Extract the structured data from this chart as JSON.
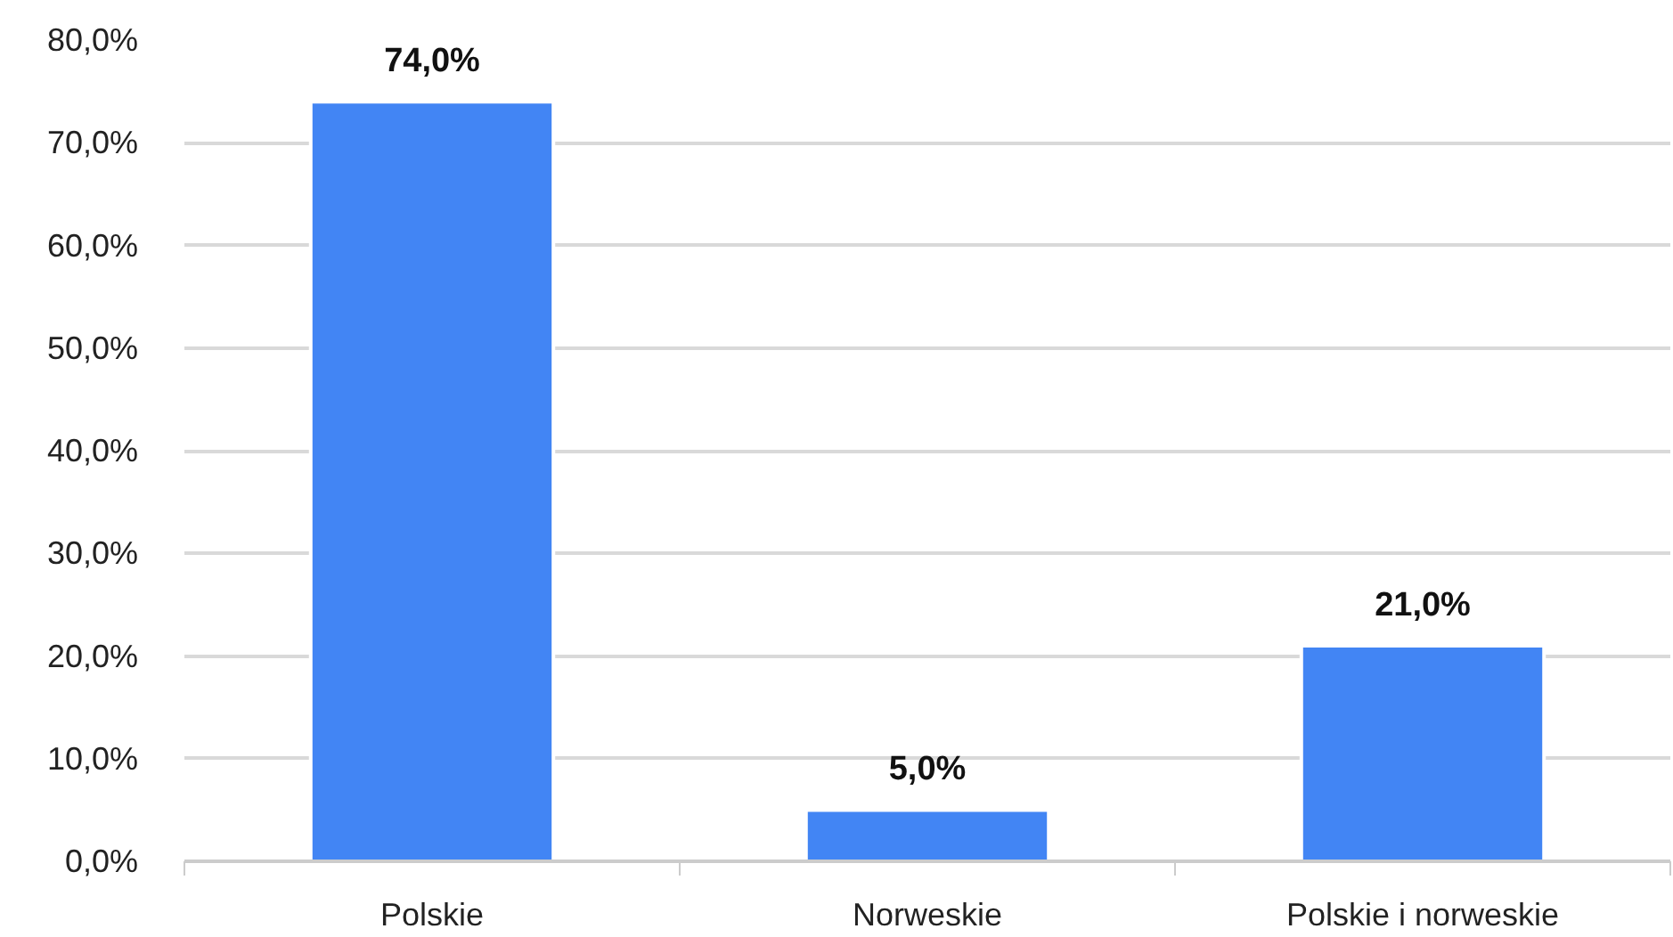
{
  "chart_data": {
    "type": "bar",
    "categories": [
      "Polskie",
      "Norweskie",
      "Polskie i norweskie"
    ],
    "values": [
      74,
      5,
      21
    ],
    "value_labels": [
      "74,0%",
      "5,0%",
      "21,0%"
    ],
    "color": "#4285f4",
    "ylim": [
      0,
      80
    ],
    "yticks": [
      {
        "value": 0,
        "label": "0,0%"
      },
      {
        "value": 10,
        "label": "10,0%"
      },
      {
        "value": 20,
        "label": "20,0%"
      },
      {
        "value": 30,
        "label": "30,0%"
      },
      {
        "value": 40,
        "label": "40,0%"
      },
      {
        "value": 50,
        "label": "50,0%"
      },
      {
        "value": 60,
        "label": "60,0%"
      },
      {
        "value": 70,
        "label": "70,0%"
      },
      {
        "value": 80,
        "label": "80,0%"
      }
    ],
    "grid": "y"
  }
}
